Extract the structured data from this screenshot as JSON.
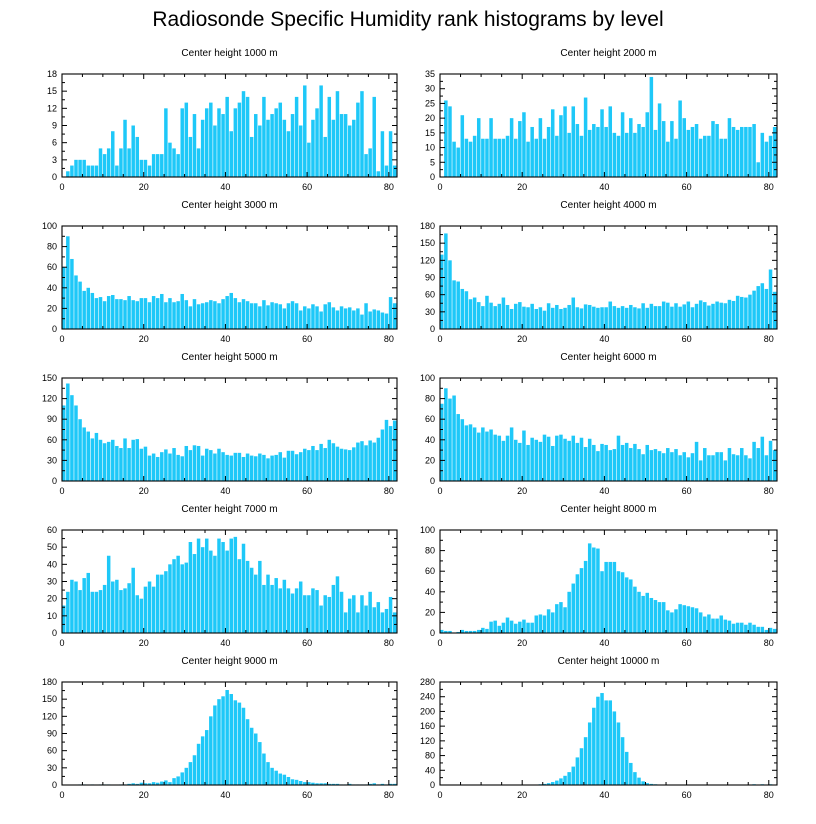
{
  "page_title": "Radiosonde Specific Humidity rank histograms by level",
  "colors": {
    "bar": "#1ec8f8",
    "axis": "#000000"
  },
  "chart_data": [
    {
      "type": "bar",
      "title": "Center height 1000 m",
      "xlim": [
        0,
        82
      ],
      "xticks": [
        0,
        20,
        40,
        60,
        80
      ],
      "ylim": [
        0,
        18
      ],
      "yticks": [
        0,
        3,
        6,
        9,
        12,
        15,
        18
      ],
      "values": [
        0,
        1,
        2,
        3,
        3,
        3,
        2,
        2,
        2,
        5,
        4,
        5,
        8,
        2,
        5,
        10,
        5,
        9,
        7,
        3,
        3,
        2,
        4,
        4,
        4,
        12,
        6,
        5,
        4,
        12,
        13,
        7,
        11,
        5,
        10,
        12,
        13,
        9,
        12,
        11,
        14,
        8,
        12,
        13,
        15,
        14,
        7,
        11,
        9,
        14,
        10,
        11,
        12,
        13,
        10,
        8,
        11,
        14,
        9,
        16,
        6,
        10,
        12,
        16,
        7,
        14,
        10,
        15,
        11,
        11,
        9,
        10,
        13,
        15,
        4,
        5,
        14,
        1,
        8,
        2,
        8,
        2
      ]
    },
    {
      "type": "bar",
      "title": "Center height 2000 m",
      "xlim": [
        0,
        82
      ],
      "xticks": [
        0,
        20,
        40,
        60,
        80
      ],
      "ylim": [
        0,
        35
      ],
      "yticks": [
        0,
        5,
        10,
        15,
        20,
        25,
        30,
        35
      ],
      "values": [
        0,
        26,
        24,
        12,
        10,
        21,
        13,
        12,
        14,
        20,
        13,
        13,
        20,
        13,
        13,
        13,
        14,
        20,
        13,
        19,
        22,
        12,
        17,
        13,
        20,
        13,
        17,
        23,
        14,
        21,
        24,
        15,
        24,
        18,
        14,
        27,
        16,
        18,
        17,
        23,
        17,
        24,
        15,
        14,
        22,
        15,
        20,
        15,
        18,
        17,
        22,
        34,
        16,
        25,
        19,
        12,
        19,
        13,
        26,
        20,
        16,
        17,
        18,
        13,
        14,
        14,
        19,
        18,
        13,
        13,
        20,
        17,
        16,
        17,
        17,
        17,
        18,
        5,
        15,
        12,
        14,
        17
      ]
    },
    {
      "type": "bar",
      "title": "Center height 3000 m",
      "xlim": [
        0,
        82
      ],
      "xticks": [
        0,
        20,
        40,
        60,
        80
      ],
      "ylim": [
        0,
        100
      ],
      "yticks": [
        0,
        20,
        40,
        60,
        80,
        100
      ],
      "values": [
        60,
        90,
        68,
        52,
        46,
        37,
        40,
        35,
        30,
        31,
        27,
        32,
        33,
        29,
        29,
        28,
        32,
        28,
        27,
        30,
        30,
        26,
        32,
        30,
        34,
        26,
        30,
        26,
        27,
        34,
        28,
        22,
        29,
        24,
        25,
        26,
        28,
        27,
        25,
        29,
        32,
        35,
        30,
        26,
        29,
        27,
        25,
        25,
        22,
        28,
        23,
        26,
        25,
        24,
        20,
        25,
        27,
        25,
        18,
        22,
        20,
        24,
        22,
        17,
        24,
        26,
        21,
        18,
        22,
        20,
        21,
        18,
        20,
        14,
        25,
        17,
        19,
        18,
        16,
        15,
        31,
        25
      ]
    },
    {
      "type": "bar",
      "title": "Center height 4000 m",
      "xlim": [
        0,
        82
      ],
      "xticks": [
        0,
        20,
        40,
        60,
        80
      ],
      "ylim": [
        0,
        180
      ],
      "yticks": [
        0,
        30,
        60,
        90,
        120,
        150,
        180
      ],
      "values": [
        130,
        167,
        120,
        85,
        83,
        70,
        66,
        52,
        55,
        47,
        40,
        58,
        46,
        40,
        44,
        55,
        42,
        35,
        44,
        47,
        39,
        38,
        44,
        35,
        38,
        32,
        45,
        37,
        42,
        35,
        37,
        42,
        55,
        38,
        36,
        43,
        42,
        39,
        37,
        38,
        38,
        48,
        40,
        37,
        40,
        37,
        42,
        38,
        36,
        45,
        37,
        44,
        40,
        40,
        48,
        46,
        39,
        45,
        39,
        43,
        48,
        38,
        44,
        50,
        47,
        41,
        44,
        48,
        46,
        45,
        51,
        49,
        58,
        56,
        55,
        60,
        67,
        75,
        80,
        70,
        104,
        65
      ]
    },
    {
      "type": "bar",
      "title": "Center height 5000 m",
      "xlim": [
        0,
        82
      ],
      "xticks": [
        0,
        20,
        40,
        60,
        80
      ],
      "ylim": [
        0,
        150
      ],
      "yticks": [
        0,
        30,
        60,
        90,
        120,
        150
      ],
      "values": [
        110,
        142,
        125,
        110,
        90,
        78,
        72,
        62,
        70,
        60,
        55,
        57,
        60,
        51,
        48,
        62,
        48,
        60,
        61,
        47,
        50,
        37,
        40,
        35,
        42,
        46,
        40,
        48,
        38,
        36,
        51,
        45,
        52,
        51,
        37,
        47,
        45,
        40,
        47,
        42,
        38,
        37,
        41,
        41,
        35,
        40,
        37,
        36,
        40,
        38,
        33,
        37,
        38,
        42,
        34,
        44,
        44,
        39,
        42,
        47,
        45,
        51,
        45,
        54,
        48,
        60,
        55,
        50,
        47,
        46,
        45,
        49,
        56,
        58,
        52,
        59,
        56,
        63,
        75,
        89,
        80,
        88
      ]
    },
    {
      "type": "bar",
      "title": "Center height 6000 m",
      "xlim": [
        0,
        82
      ],
      "xticks": [
        0,
        20,
        40,
        60,
        80
      ],
      "ylim": [
        0,
        100
      ],
      "yticks": [
        0,
        20,
        40,
        60,
        80,
        100
      ],
      "values": [
        75,
        90,
        80,
        83,
        65,
        60,
        54,
        55,
        52,
        47,
        52,
        48,
        50,
        45,
        44,
        39,
        44,
        52,
        40,
        37,
        49,
        35,
        42,
        40,
        38,
        45,
        43,
        34,
        44,
        45,
        41,
        39,
        44,
        37,
        42,
        33,
        41,
        35,
        29,
        36,
        35,
        30,
        31,
        44,
        35,
        37,
        32,
        36,
        31,
        26,
        35,
        30,
        31,
        29,
        27,
        32,
        28,
        31,
        25,
        28,
        23,
        27,
        38,
        20,
        32,
        25,
        25,
        28,
        28,
        20,
        32,
        26,
        25,
        32,
        25,
        22,
        38,
        32,
        43,
        25,
        39,
        30
      ]
    },
    {
      "type": "bar",
      "title": "Center height 7000 m",
      "xlim": [
        0,
        82
      ],
      "xticks": [
        0,
        20,
        40,
        60,
        80
      ],
      "ylim": [
        0,
        60
      ],
      "yticks": [
        0,
        10,
        20,
        30,
        40,
        50,
        60
      ],
      "values": [
        16,
        24,
        31,
        30,
        25,
        32,
        35,
        24,
        24,
        25,
        28,
        45,
        30,
        31,
        25,
        26,
        29,
        38,
        22,
        20,
        27,
        30,
        27,
        34,
        34,
        36,
        40,
        43,
        45,
        40,
        41,
        53,
        46,
        55,
        50,
        55,
        48,
        45,
        55,
        53,
        48,
        55,
        56,
        43,
        52,
        42,
        38,
        34,
        42,
        28,
        34,
        28,
        32,
        26,
        31,
        26,
        23,
        26,
        30,
        22,
        22,
        26,
        25,
        16,
        22,
        21,
        28,
        33,
        24,
        12,
        20,
        22,
        12,
        22,
        16,
        24,
        15,
        18,
        12,
        14,
        21,
        12
      ]
    },
    {
      "type": "bar",
      "title": "Center height 8000 m",
      "xlim": [
        0,
        82
      ],
      "xticks": [
        0,
        20,
        40,
        60,
        80
      ],
      "ylim": [
        0,
        100
      ],
      "yticks": [
        0,
        20,
        40,
        60,
        80,
        100
      ],
      "values": [
        3,
        2,
        2,
        0,
        1,
        3,
        2,
        2,
        2,
        3,
        5,
        4,
        11,
        12,
        7,
        10,
        15,
        12,
        9,
        11,
        13,
        10,
        10,
        17,
        18,
        17,
        23,
        20,
        28,
        30,
        25,
        40,
        48,
        57,
        63,
        70,
        87,
        83,
        82,
        60,
        69,
        69,
        69,
        60,
        59,
        54,
        52,
        45,
        40,
        36,
        39,
        34,
        32,
        30,
        30,
        22,
        20,
        23,
        28,
        27,
        26,
        25,
        24,
        20,
        16,
        18,
        14,
        14,
        17,
        13,
        12,
        9,
        10,
        10,
        8,
        10,
        8,
        6,
        6,
        3,
        5,
        4
      ]
    },
    {
      "type": "bar",
      "title": "Center height 9000 m",
      "xlim": [
        0,
        82
      ],
      "xticks": [
        0,
        20,
        40,
        60,
        80
      ],
      "ylim": [
        0,
        180
      ],
      "yticks": [
        0,
        30,
        60,
        90,
        120,
        150,
        180
      ],
      "values": [
        0,
        0,
        0,
        0,
        1,
        1,
        0,
        1,
        0,
        1,
        1,
        1,
        0,
        0,
        1,
        1,
        2,
        3,
        2,
        4,
        3,
        3,
        5,
        4,
        6,
        8,
        5,
        12,
        15,
        22,
        30,
        40,
        52,
        72,
        85,
        96,
        120,
        139,
        150,
        155,
        166,
        159,
        148,
        144,
        135,
        115,
        100,
        90,
        75,
        55,
        40,
        30,
        25,
        20,
        18,
        14,
        10,
        9,
        7,
        5,
        5,
        4,
        3,
        3,
        3,
        2,
        2,
        2,
        1,
        1,
        2,
        1,
        1,
        1,
        1,
        2,
        3,
        1,
        2,
        1,
        2,
        2
      ]
    },
    {
      "type": "bar",
      "title": "Center height 10000 m",
      "xlim": [
        0,
        82
      ],
      "xticks": [
        0,
        20,
        40,
        60,
        80
      ],
      "ylim": [
        0,
        280
      ],
      "yticks": [
        0,
        40,
        80,
        120,
        160,
        200,
        240,
        280
      ],
      "values": [
        0,
        0,
        0,
        0,
        0,
        0,
        0,
        0,
        0,
        0,
        0,
        0,
        0,
        0,
        0,
        0,
        0,
        0,
        0,
        0,
        0,
        1,
        1,
        1,
        2,
        3,
        5,
        8,
        12,
        18,
        25,
        35,
        50,
        75,
        100,
        130,
        170,
        210,
        240,
        250,
        230,
        230,
        200,
        170,
        130,
        90,
        60,
        35,
        20,
        10,
        5,
        3,
        2,
        1,
        1,
        0,
        0,
        0,
        0,
        0,
        0,
        0,
        0,
        0,
        0,
        0,
        0,
        0,
        0,
        0,
        0,
        0,
        0,
        0,
        0,
        0,
        2,
        1,
        2,
        1,
        2,
        1
      ]
    }
  ]
}
